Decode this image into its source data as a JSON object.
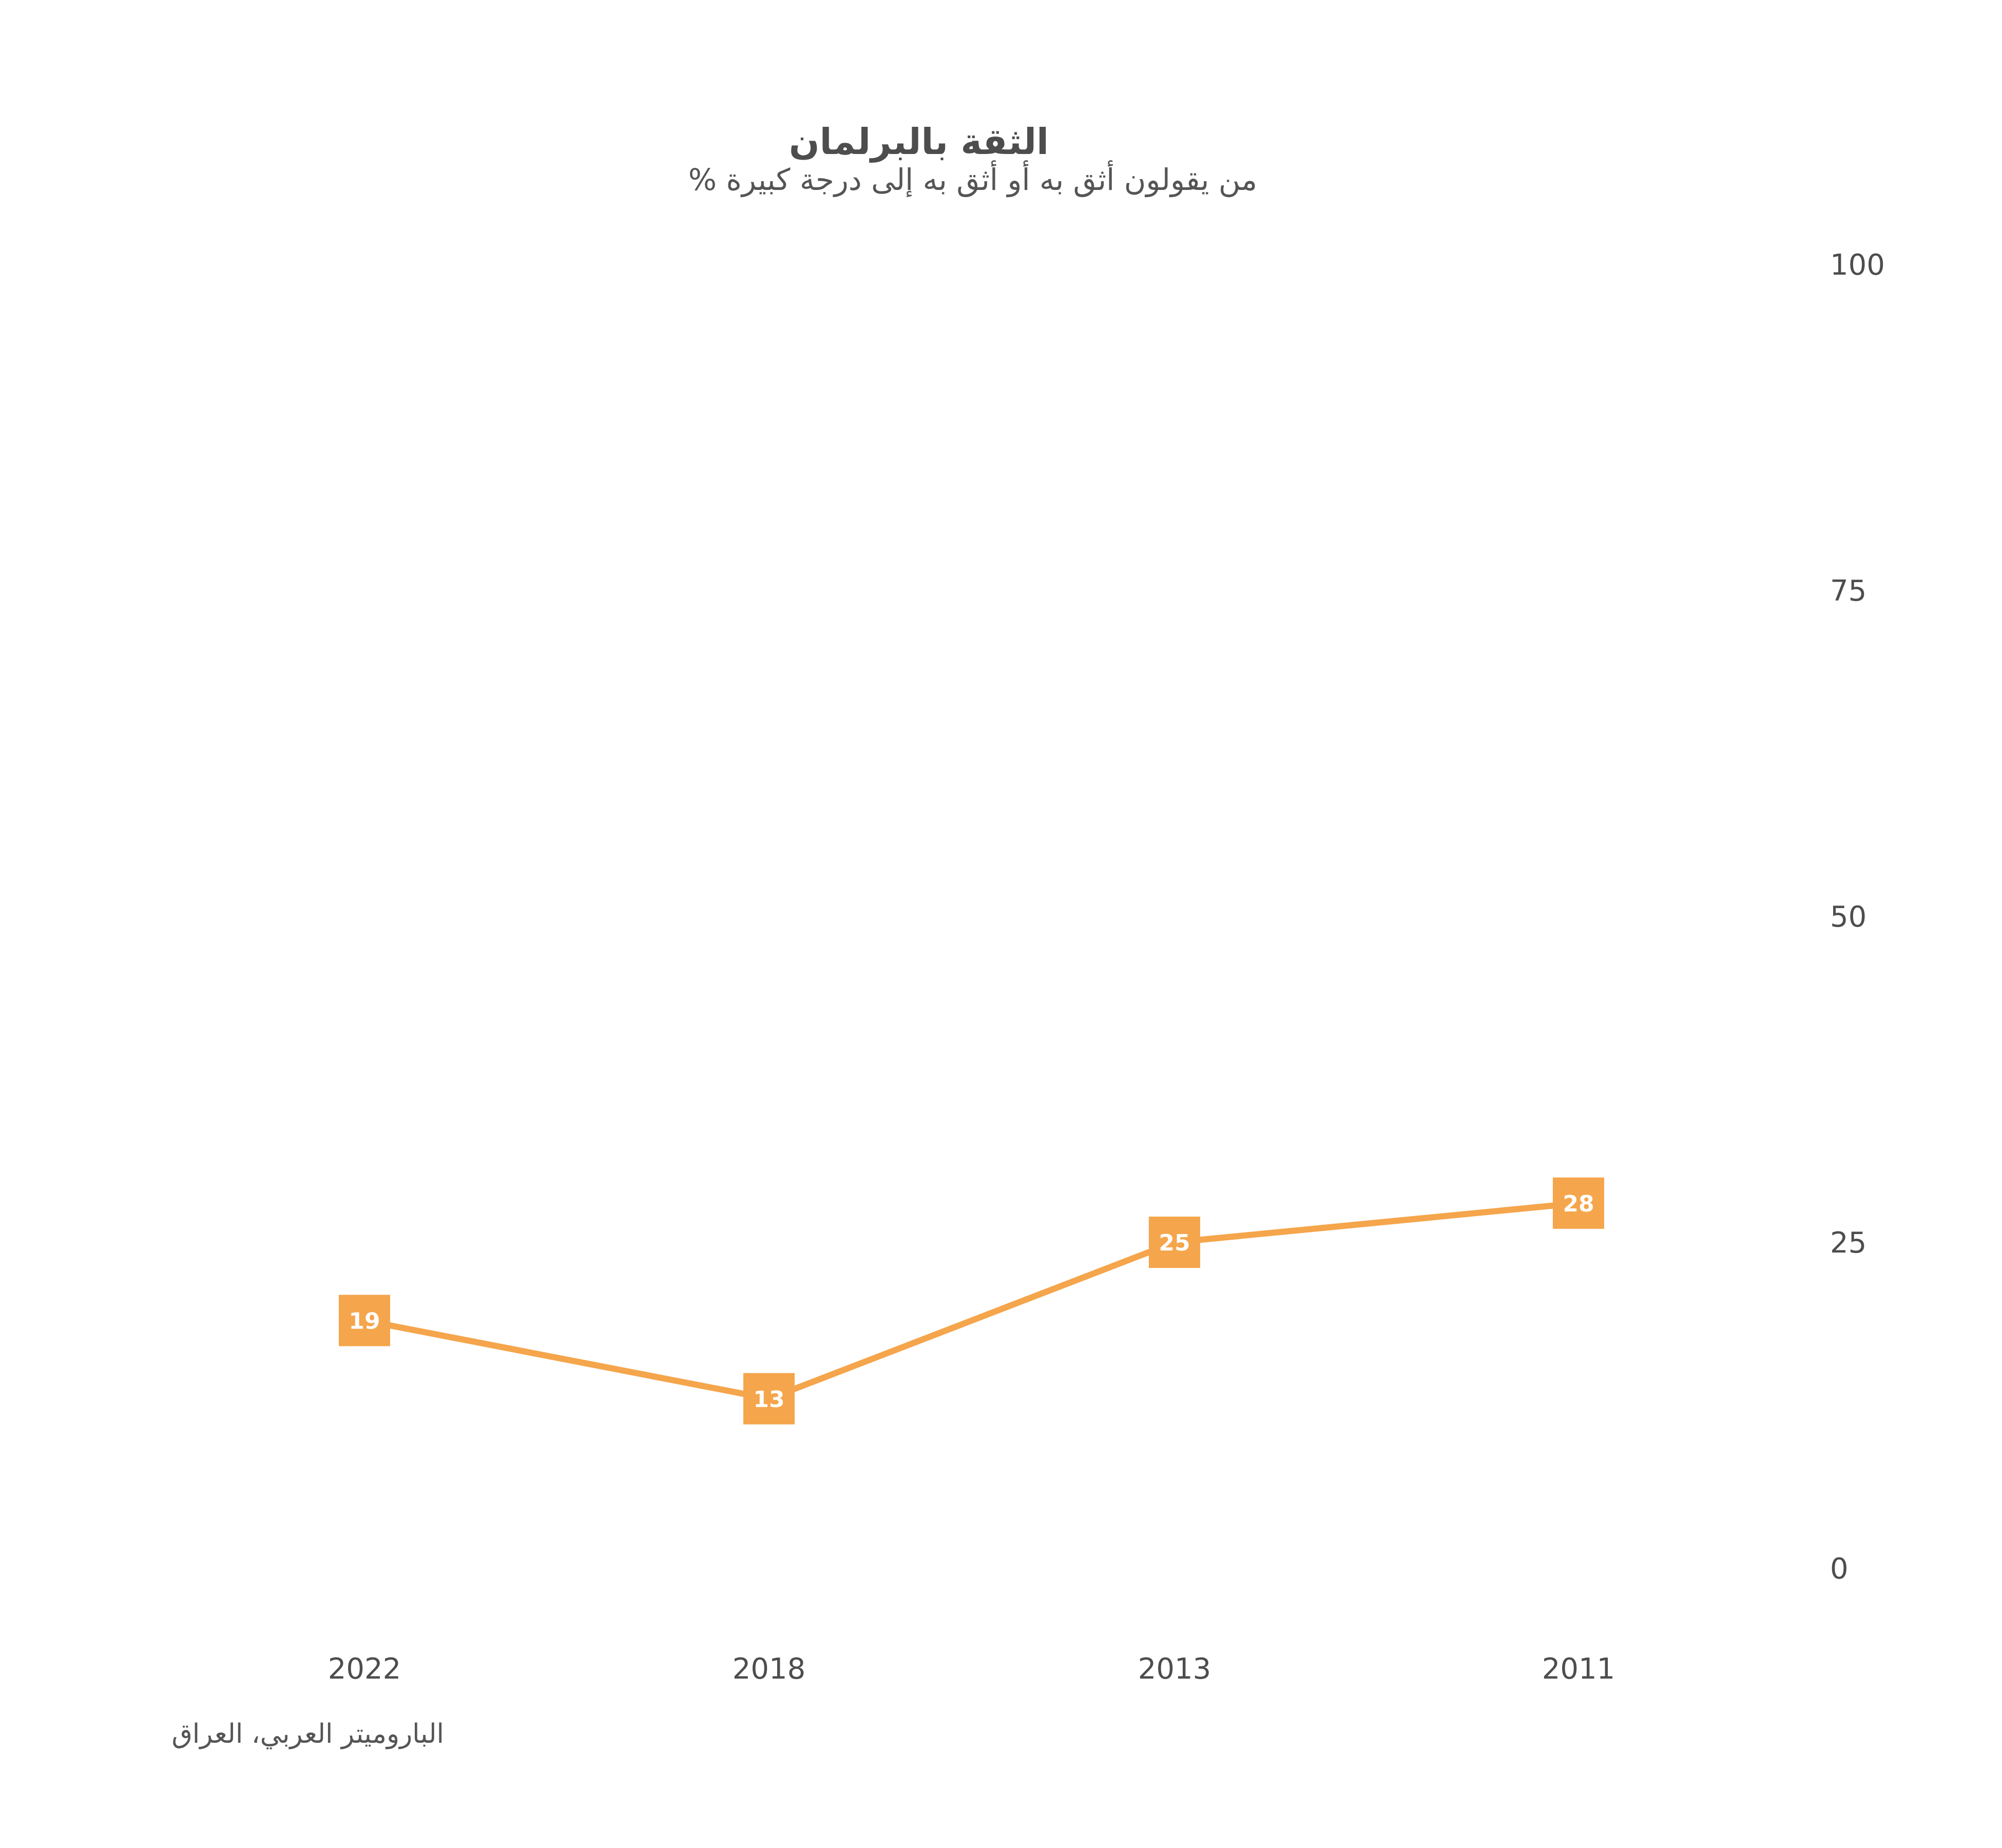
{
  "chart_data": {
    "type": "line",
    "title": "الثقة بالبرلمان",
    "subtitle": "% من يقولون أثق به أو أثق به إلى درجة كبيرة",
    "source": "الباروميتر العربي، العراق",
    "categories": [
      "2022",
      "2018",
      "2013",
      "2011"
    ],
    "series": [
      {
        "values": [
          19,
          13,
          25,
          28
        ]
      }
    ],
    "ylim": [
      0,
      100
    ],
    "yticks": [
      0,
      25,
      50,
      75,
      100
    ],
    "y_axis_side": "right",
    "grid": false,
    "colors": {
      "line": "#f5a54b",
      "marker": "#f5a54b",
      "label_text": "#ffffff",
      "text": "#4d4d4d"
    }
  }
}
